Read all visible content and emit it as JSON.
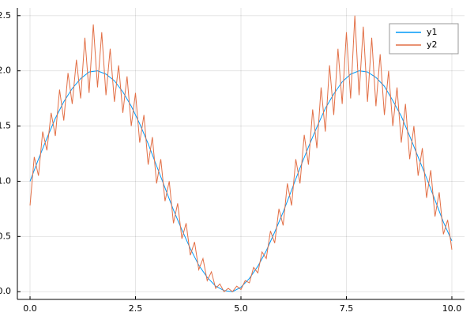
{
  "chart_data": {
    "type": "line",
    "series": [
      {
        "name": "y1",
        "color": "#009af9",
        "x": [
          0,
          0.2,
          0.4,
          0.6,
          0.8,
          1,
          1.2,
          1.4,
          1.6,
          1.8,
          2,
          2.2,
          2.4,
          2.6,
          2.8,
          3,
          3.2,
          3.4,
          3.6,
          3.8,
          4,
          4.2,
          4.4,
          4.6,
          4.8,
          5,
          5.2,
          5.4,
          5.6,
          5.8,
          6,
          6.2,
          6.4,
          6.6,
          6.8,
          7,
          7.2,
          7.4,
          7.6,
          7.8,
          8,
          8.2,
          8.4,
          8.6,
          8.8,
          9,
          9.2,
          9.4,
          9.6,
          9.8,
          10
        ],
        "values": [
          1.0,
          1.2,
          1.39,
          1.57,
          1.72,
          1.84,
          1.93,
          1.99,
          2.0,
          1.97,
          1.91,
          1.81,
          1.68,
          1.52,
          1.34,
          1.14,
          0.94,
          0.74,
          0.56,
          0.39,
          0.24,
          0.13,
          0.05,
          0.01,
          0.0,
          0.04,
          0.12,
          0.23,
          0.37,
          0.54,
          0.72,
          0.92,
          1.12,
          1.31,
          1.49,
          1.66,
          1.79,
          1.9,
          1.97,
          2.0,
          1.99,
          1.94,
          1.86,
          1.73,
          1.59,
          1.41,
          1.22,
          1.03,
          0.83,
          0.63,
          0.46
        ]
      },
      {
        "name": "y2",
        "color": "#e26f46",
        "x": [
          0,
          0.1,
          0.2,
          0.3,
          0.4,
          0.5,
          0.6,
          0.7,
          0.8,
          0.9,
          1,
          1.1,
          1.2,
          1.3,
          1.4,
          1.5,
          1.6,
          1.7,
          1.8,
          1.9,
          2,
          2.1,
          2.2,
          2.3,
          2.4,
          2.5,
          2.6,
          2.7,
          2.8,
          2.9,
          3,
          3.1,
          3.2,
          3.3,
          3.4,
          3.5,
          3.6,
          3.7,
          3.8,
          3.9,
          4,
          4.1,
          4.2,
          4.3,
          4.4,
          4.5,
          4.6,
          4.7,
          4.8,
          4.9,
          5,
          5.1,
          5.2,
          5.3,
          5.4,
          5.5,
          5.6,
          5.7,
          5.8,
          5.9,
          6,
          6.1,
          6.2,
          6.3,
          6.4,
          6.5,
          6.6,
          6.7,
          6.8,
          6.9,
          7,
          7.1,
          7.2,
          7.3,
          7.4,
          7.5,
          7.6,
          7.7,
          7.8,
          7.9,
          8,
          8.1,
          8.2,
          8.3,
          8.4,
          8.5,
          8.6,
          8.7,
          8.8,
          8.9,
          9,
          9.1,
          9.2,
          9.3,
          9.4,
          9.5,
          9.6,
          9.7,
          9.8,
          9.9,
          10
        ],
        "values": [
          0.78,
          1.22,
          1.05,
          1.45,
          1.28,
          1.62,
          1.41,
          1.83,
          1.55,
          1.98,
          1.7,
          2.1,
          1.75,
          2.3,
          1.8,
          2.42,
          1.85,
          2.35,
          1.78,
          2.2,
          1.72,
          2.05,
          1.62,
          1.95,
          1.5,
          1.8,
          1.35,
          1.6,
          1.15,
          1.4,
          0.98,
          1.2,
          0.82,
          1.0,
          0.62,
          0.8,
          0.48,
          0.62,
          0.33,
          0.45,
          0.2,
          0.3,
          0.1,
          0.18,
          0.03,
          0.07,
          0.0,
          0.03,
          0.0,
          0.05,
          0.02,
          0.1,
          0.08,
          0.22,
          0.17,
          0.36,
          0.3,
          0.55,
          0.44,
          0.75,
          0.6,
          0.98,
          0.78,
          1.2,
          0.98,
          1.42,
          1.15,
          1.65,
          1.3,
          1.85,
          1.45,
          2.05,
          1.6,
          2.2,
          1.7,
          2.35,
          1.75,
          2.5,
          1.78,
          2.4,
          1.72,
          2.3,
          1.68,
          2.15,
          1.6,
          2.0,
          1.5,
          1.85,
          1.35,
          1.7,
          1.2,
          1.5,
          1.05,
          1.3,
          0.85,
          1.1,
          0.68,
          0.9,
          0.52,
          0.65,
          0.38
        ]
      }
    ],
    "xlim": [
      -0.3,
      10.3
    ],
    "xticks": [
      {
        "value": 0,
        "label": "0.0"
      },
      2.5,
      {
        "value": 5,
        "label": "5.0"
      },
      7.5,
      {
        "value": 10,
        "label": "10.0"
      }
    ],
    "ylim": [
      -0.07,
      2.57
    ],
    "yticks": [
      {
        "value": 0,
        "label": "0.0"
      },
      0.5,
      {
        "value": 1,
        "label": "1.0"
      },
      1.5,
      {
        "value": 2,
        "label": "2.0"
      },
      2.5
    ],
    "grid": true,
    "legend": "upper right"
  }
}
